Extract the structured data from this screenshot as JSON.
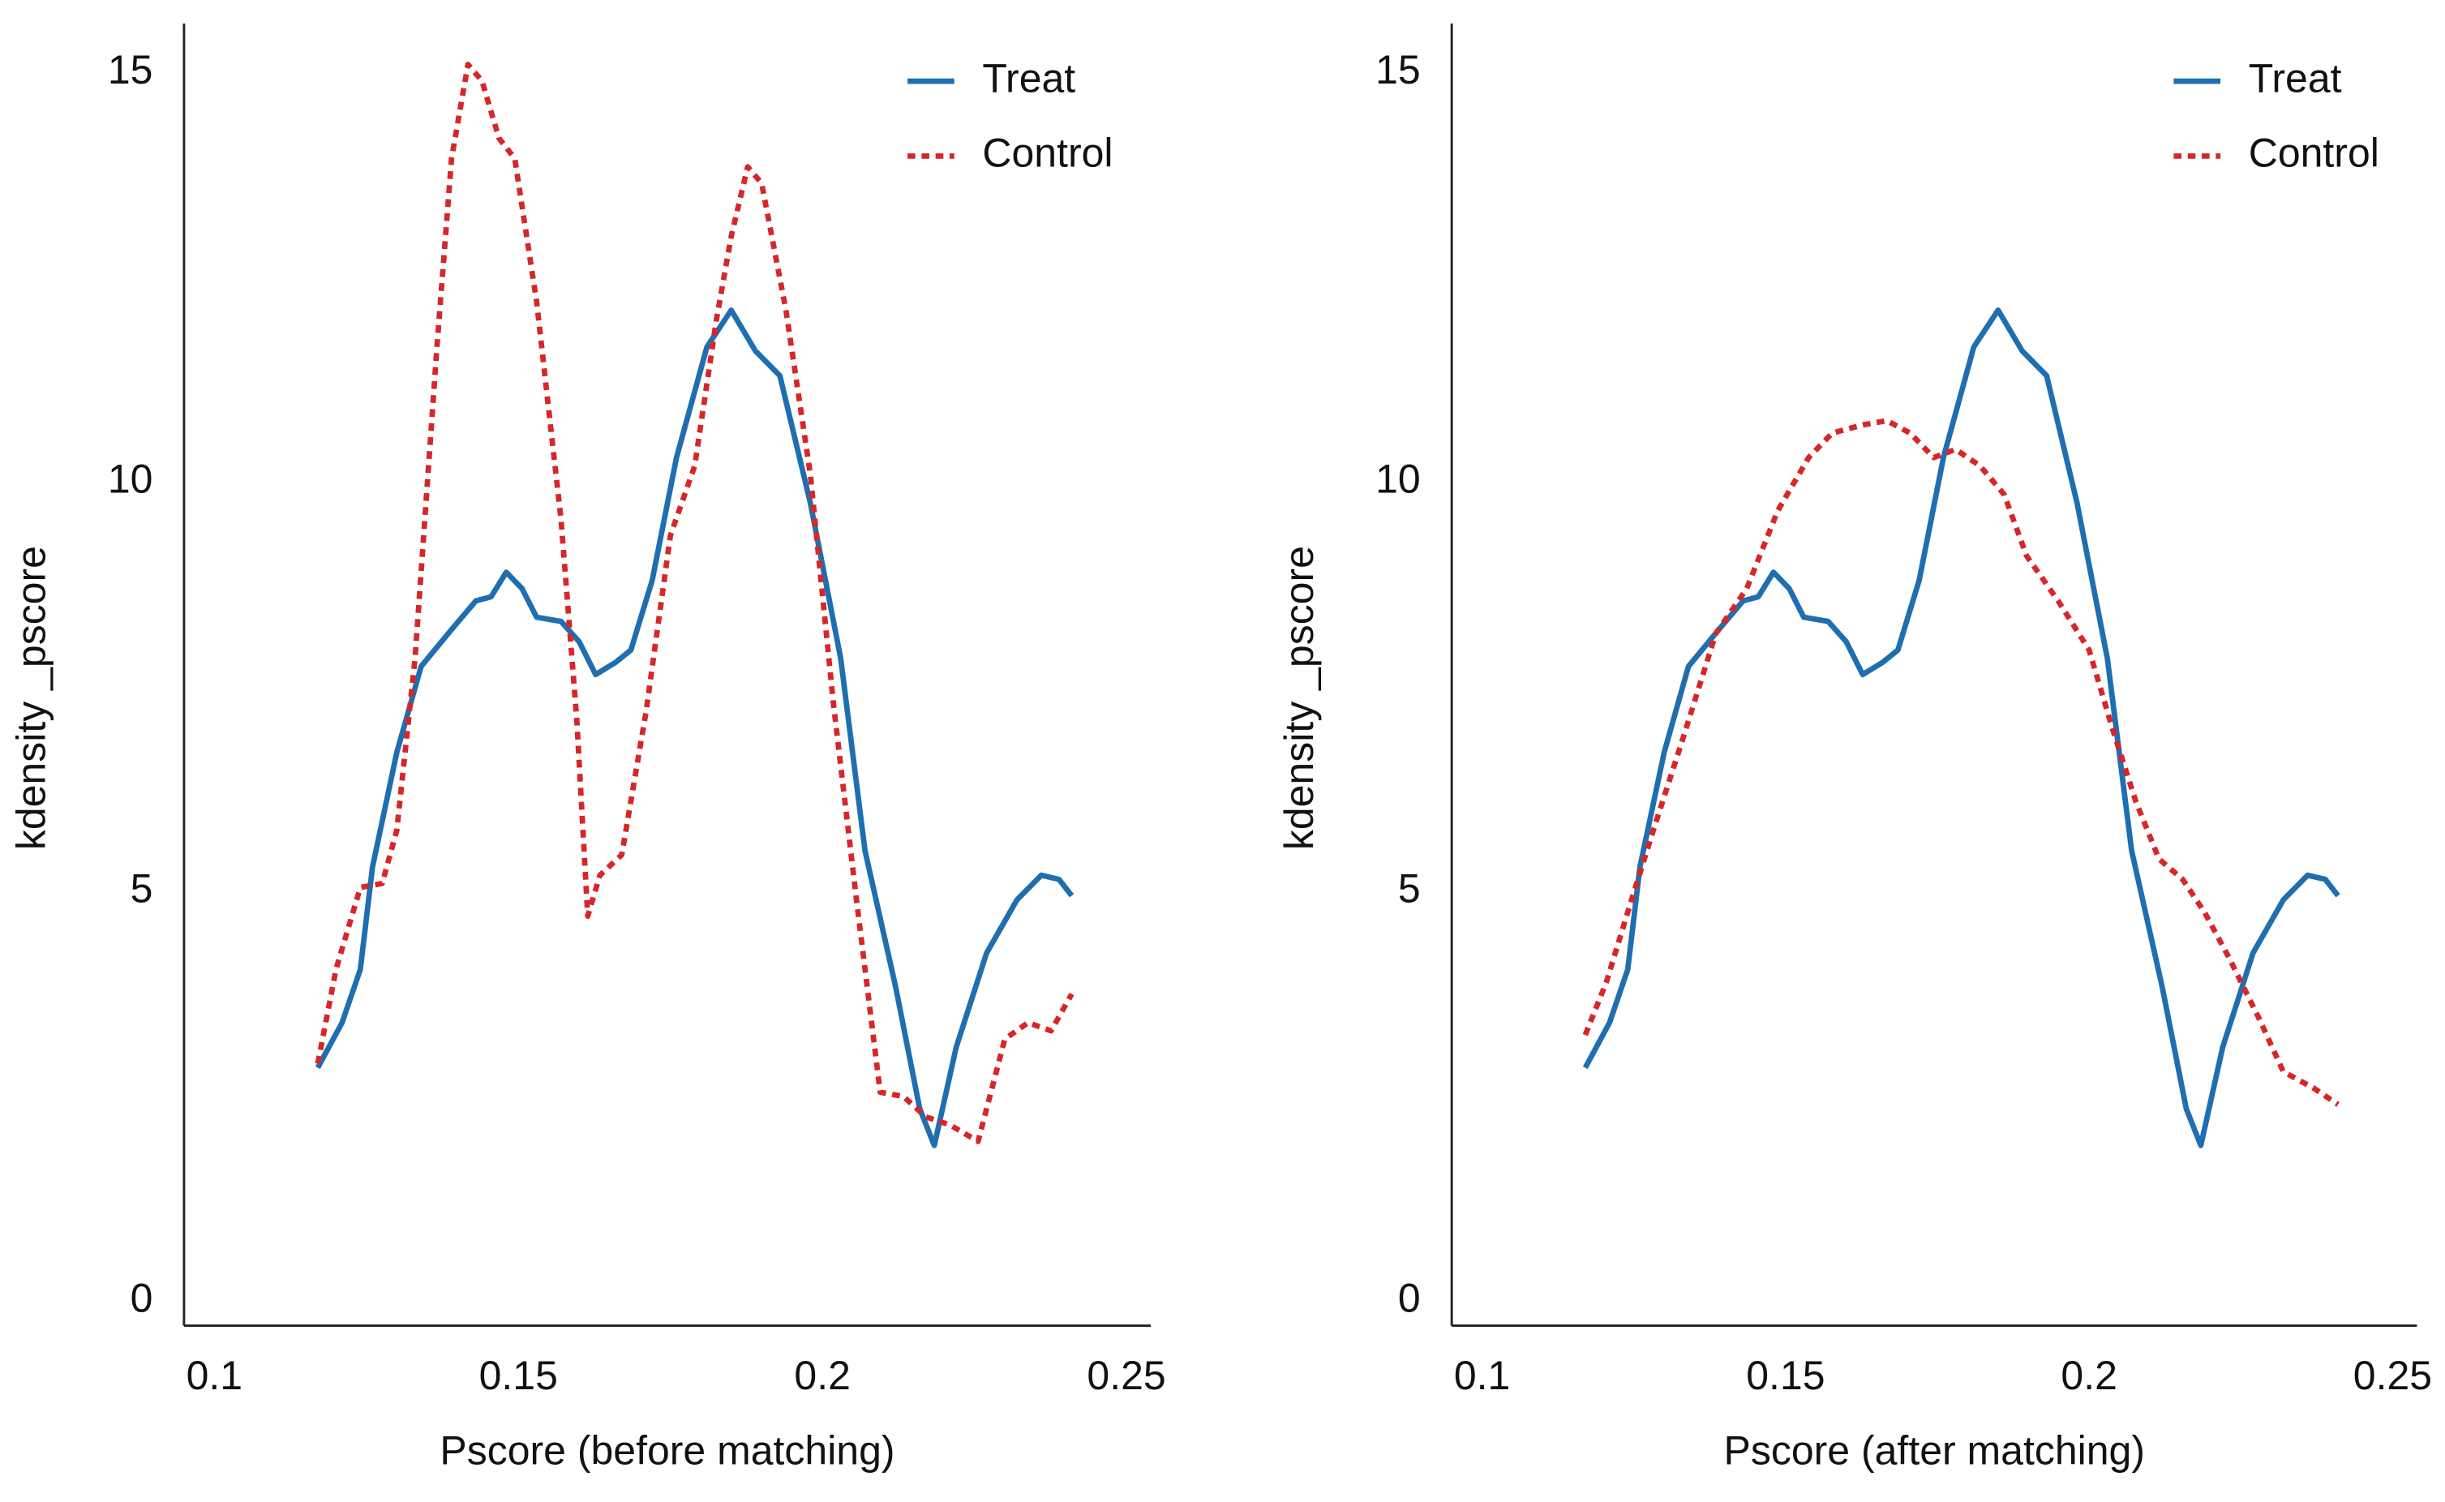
{
  "chart_data": [
    {
      "type": "line",
      "xlabel": "Pscore (before matching)",
      "ylabel": "kdensity _pscore",
      "xlim": [
        0.095,
        0.254
      ],
      "ylim": [
        -0.3,
        15.6
      ],
      "xticks": [
        0.1,
        0.15,
        0.2,
        0.25
      ],
      "yticks": [
        0,
        5,
        10,
        15
      ],
      "legend": "upper right",
      "series": [
        {
          "name": "Treat",
          "color": "#1f6fb0",
          "style": "solid",
          "x": [
            0.117,
            0.121,
            0.124,
            0.126,
            0.13,
            0.134,
            0.139,
            0.143,
            0.1455,
            0.148,
            0.1506,
            0.153,
            0.157,
            0.16,
            0.1627,
            0.166,
            0.1685,
            0.172,
            0.176,
            0.181,
            0.185,
            0.189,
            0.193,
            0.198,
            0.203,
            0.207,
            0.212,
            0.216,
            0.2184,
            0.222,
            0.227,
            0.232,
            0.236,
            0.2389,
            0.241
          ],
          "values": [
            2.85,
            3.4,
            4.05,
            5.3,
            6.7,
            7.75,
            8.2,
            8.55,
            8.6,
            8.9,
            8.7,
            8.35,
            8.3,
            8.05,
            7.65,
            7.8,
            7.95,
            8.8,
            10.3,
            11.65,
            12.1,
            11.6,
            11.3,
            9.75,
            7.85,
            5.5,
            3.85,
            2.35,
            1.9,
            3.1,
            4.25,
            4.9,
            5.2,
            5.15,
            4.95
          ]
        },
        {
          "name": "Control",
          "color": "#d62728",
          "style": "dotted",
          "x": [
            0.117,
            0.12,
            0.124,
            0.1276,
            0.13,
            0.133,
            0.1366,
            0.139,
            0.1417,
            0.144,
            0.1468,
            0.1494,
            0.153,
            0.157,
            0.1596,
            0.1614,
            0.1634,
            0.167,
            0.171,
            0.175,
            0.179,
            0.1826,
            0.185,
            0.1877,
            0.19,
            0.194,
            0.198,
            0.2018,
            0.2056,
            0.2095,
            0.2133,
            0.217,
            0.221,
            0.2256,
            0.23,
            0.2338,
            0.2376,
            0.241
          ],
          "values": [
            2.9,
            4.05,
            5.05,
            5.1,
            5.75,
            7.85,
            11.65,
            13.95,
            15.1,
            14.9,
            14.2,
            13.95,
            12.2,
            9.55,
            7.1,
            4.7,
            5.2,
            5.45,
            7.2,
            9.35,
            10.2,
            12.0,
            13.0,
            13.85,
            13.65,
            12.1,
            10.1,
            7.3,
            4.9,
            2.55,
            2.5,
            2.25,
            2.15,
            1.95,
            3.2,
            3.4,
            3.3,
            3.75
          ]
        }
      ]
    },
    {
      "type": "line",
      "xlabel": "Pscore (after matching)",
      "ylabel": "kdensity _pscore",
      "xlim": [
        0.095,
        0.254
      ],
      "ylim": [
        -0.3,
        15.6
      ],
      "xticks": [
        0.1,
        0.15,
        0.2,
        0.25
      ],
      "yticks": [
        0,
        5,
        10,
        15
      ],
      "legend": "upper right",
      "series": [
        {
          "name": "Treat",
          "color": "#1f6fb0",
          "style": "solid",
          "x": [
            0.117,
            0.121,
            0.124,
            0.126,
            0.13,
            0.134,
            0.139,
            0.143,
            0.1455,
            0.148,
            0.1506,
            0.153,
            0.157,
            0.16,
            0.1627,
            0.166,
            0.1685,
            0.172,
            0.176,
            0.181,
            0.185,
            0.189,
            0.193,
            0.198,
            0.203,
            0.207,
            0.212,
            0.216,
            0.2184,
            0.222,
            0.227,
            0.232,
            0.236,
            0.2389,
            0.241
          ],
          "values": [
            2.85,
            3.4,
            4.05,
            5.3,
            6.7,
            7.75,
            8.2,
            8.55,
            8.6,
            8.9,
            8.7,
            8.35,
            8.3,
            8.05,
            7.65,
            7.8,
            7.95,
            8.8,
            10.3,
            11.65,
            12.1,
            11.6,
            11.3,
            9.75,
            7.85,
            5.5,
            3.85,
            2.35,
            1.9,
            3.1,
            4.25,
            4.9,
            5.2,
            5.15,
            4.95
          ]
        },
        {
          "name": "Control",
          "color": "#d62728",
          "style": "dotted",
          "x": [
            0.117,
            0.1205,
            0.124,
            0.128,
            0.133,
            0.1385,
            0.1436,
            0.1487,
            0.1538,
            0.1577,
            0.1628,
            0.1667,
            0.1705,
            0.1744,
            0.178,
            0.182,
            0.186,
            0.1897,
            0.1949,
            0.2,
            0.2038,
            0.2077,
            0.2115,
            0.2154,
            0.219,
            0.223,
            0.228,
            0.232,
            0.237,
            0.241
          ],
          "values": [
            3.25,
            3.9,
            4.75,
            5.7,
            6.85,
            8.15,
            8.7,
            9.65,
            10.3,
            10.6,
            10.7,
            10.75,
            10.6,
            10.3,
            10.4,
            10.2,
            9.85,
            9.1,
            8.55,
            7.95,
            7.0,
            6.1,
            5.4,
            5.15,
            4.75,
            4.2,
            3.45,
            2.8,
            2.6,
            2.4
          ]
        }
      ]
    }
  ]
}
